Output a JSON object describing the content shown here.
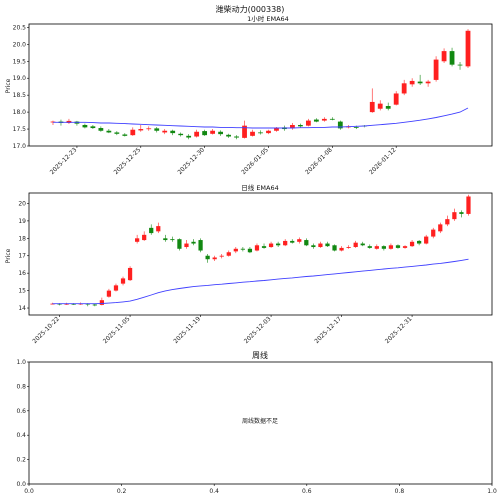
{
  "suptitle": "潍柴动力(000338)",
  "colors": {
    "up": "#ff2020",
    "down": "#118811",
    "ema": "#4040ff"
  },
  "chart_data": [
    {
      "type": "candlestick",
      "title": "1小时 EMA64",
      "ylabel": "Price",
      "ylim": [
        17.0,
        20.6
      ],
      "yticks": [
        "17.0",
        "17.5",
        "18.0",
        "18.5",
        "19.0",
        "19.5",
        "20.0",
        "20.5"
      ],
      "xticks": [
        "2025-12-23",
        "2025-12-25",
        "2025-12-30",
        "2026-01-05",
        "2026-01-08",
        "2026-01-12"
      ],
      "xtick_index": [
        3,
        11,
        19,
        27,
        35,
        43
      ],
      "n": 53,
      "candles": [
        [
          17.7,
          17.72,
          17.75,
          17.62
        ],
        [
          17.72,
          17.68,
          17.78,
          17.6
        ],
        [
          17.68,
          17.74,
          17.8,
          17.65
        ],
        [
          17.72,
          17.66,
          17.74,
          17.6
        ],
        [
          17.62,
          17.55,
          17.66,
          17.52
        ],
        [
          17.58,
          17.53,
          17.62,
          17.5
        ],
        [
          17.53,
          17.45,
          17.58,
          17.42
        ],
        [
          17.45,
          17.4,
          17.5,
          17.38
        ],
        [
          17.4,
          17.36,
          17.44,
          17.32
        ],
        [
          17.34,
          17.3,
          17.38,
          17.28
        ],
        [
          17.32,
          17.48,
          17.55,
          17.3
        ],
        [
          17.46,
          17.5,
          17.62,
          17.42
        ],
        [
          17.5,
          17.52,
          17.58,
          17.45
        ],
        [
          17.52,
          17.45,
          17.56,
          17.4
        ],
        [
          17.4,
          17.45,
          17.5,
          17.35
        ],
        [
          17.45,
          17.38,
          17.48,
          17.32
        ],
        [
          17.36,
          17.32,
          17.4,
          17.28
        ],
        [
          17.3,
          17.25,
          17.35,
          17.2
        ],
        [
          17.28,
          17.42,
          17.48,
          17.25
        ],
        [
          17.44,
          17.32,
          17.48,
          17.3
        ],
        [
          17.36,
          17.45,
          17.5,
          17.34
        ],
        [
          17.42,
          17.35,
          17.46,
          17.3
        ],
        [
          17.33,
          17.28,
          17.36,
          17.24
        ],
        [
          17.28,
          17.25,
          17.32,
          17.2
        ],
        [
          17.24,
          17.6,
          17.75,
          17.22
        ],
        [
          17.3,
          17.42,
          17.48,
          17.28
        ],
        [
          17.4,
          17.38,
          17.46,
          17.34
        ],
        [
          17.38,
          17.45,
          17.48,
          17.35
        ],
        [
          17.45,
          17.52,
          17.56,
          17.42
        ],
        [
          17.55,
          17.5,
          17.6,
          17.45
        ],
        [
          17.52,
          17.62,
          17.68,
          17.48
        ],
        [
          17.62,
          17.58,
          17.66,
          17.54
        ],
        [
          17.6,
          17.75,
          17.8,
          17.58
        ],
        [
          17.78,
          17.72,
          17.82,
          17.7
        ],
        [
          17.75,
          17.8,
          17.85,
          17.72
        ],
        [
          17.8,
          17.78,
          17.85,
          17.76
        ],
        [
          17.72,
          17.52,
          17.75,
          17.48
        ],
        [
          17.55,
          17.58,
          17.62,
          17.52
        ],
        [
          17.56,
          17.55,
          17.6,
          17.5
        ],
        [
          17.6,
          17.58,
          17.62,
          17.55
        ],
        [
          18.0,
          18.3,
          18.7,
          17.98
        ],
        [
          18.1,
          18.25,
          18.35,
          18.05
        ],
        [
          18.18,
          18.1,
          18.28,
          18.05
        ],
        [
          18.22,
          18.55,
          18.62,
          18.2
        ],
        [
          18.55,
          18.85,
          18.95,
          18.5
        ],
        [
          18.82,
          18.92,
          19.0,
          18.75
        ],
        [
          18.9,
          18.85,
          19.1,
          18.8
        ],
        [
          18.85,
          18.9,
          18.95,
          18.75
        ],
        [
          18.95,
          19.55,
          19.65,
          18.9
        ],
        [
          19.5,
          19.8,
          19.88,
          19.45
        ],
        [
          19.8,
          19.4,
          19.9,
          19.35
        ],
        [
          19.4,
          19.38,
          19.48,
          19.25
        ],
        [
          19.35,
          20.4,
          20.45,
          19.3
        ]
      ],
      "ema": [
        17.7,
        17.7,
        17.7,
        17.7,
        17.7,
        17.69,
        17.68,
        17.68,
        17.67,
        17.66,
        17.65,
        17.64,
        17.63,
        17.62,
        17.61,
        17.6,
        17.59,
        17.58,
        17.57,
        17.56,
        17.56,
        17.55,
        17.55,
        17.54,
        17.54,
        17.53,
        17.53,
        17.53,
        17.53,
        17.53,
        17.53,
        17.54,
        17.54,
        17.55,
        17.55,
        17.56,
        17.56,
        17.57,
        17.58,
        17.59,
        17.61,
        17.63,
        17.65,
        17.67,
        17.7,
        17.73,
        17.76,
        17.8,
        17.84,
        17.89,
        17.94,
        18.0,
        18.12
      ]
    },
    {
      "type": "candlestick",
      "title": "日线 EMA64",
      "ylabel": "Price",
      "ylim": [
        13.6,
        20.6
      ],
      "yticks": [
        "14",
        "15",
        "16",
        "17",
        "18",
        "19",
        "20"
      ],
      "xticks": [
        "2025-10-22",
        "2025-11-05",
        "2025-11-19",
        "2025-12-03",
        "2025-12-17",
        "2025-12-31"
      ],
      "xtick_index": [
        1,
        11,
        21,
        31,
        41,
        51
      ],
      "n": 60,
      "candles": [
        [
          14.25,
          14.25,
          14.3,
          14.2
        ],
        [
          14.25,
          14.2,
          14.28,
          14.15
        ],
        [
          14.22,
          14.24,
          14.3,
          14.18
        ],
        [
          14.24,
          14.22,
          14.28,
          14.18
        ],
        [
          14.22,
          14.25,
          14.32,
          14.18
        ],
        [
          14.25,
          14.2,
          14.28,
          14.1
        ],
        [
          14.2,
          14.15,
          14.25,
          14.1
        ],
        [
          14.18,
          14.45,
          14.6,
          14.15
        ],
        [
          14.65,
          15.0,
          15.1,
          14.6
        ],
        [
          15.0,
          15.3,
          15.4,
          14.95
        ],
        [
          15.4,
          15.7,
          15.8,
          15.3
        ],
        [
          15.6,
          16.3,
          16.4,
          15.55
        ],
        [
          17.8,
          18.0,
          18.2,
          17.7
        ],
        [
          17.9,
          18.2,
          18.4,
          17.85
        ],
        [
          18.6,
          18.3,
          18.8,
          18.2
        ],
        [
          18.4,
          18.7,
          18.9,
          18.3
        ],
        [
          18.0,
          17.9,
          18.2,
          17.8
        ],
        [
          17.95,
          17.9,
          18.1,
          17.8
        ],
        [
          17.95,
          17.4,
          18.0,
          17.3
        ],
        [
          17.5,
          17.7,
          17.9,
          17.4
        ],
        [
          17.8,
          17.7,
          17.95,
          17.6
        ],
        [
          17.9,
          17.3,
          18.0,
          17.2
        ],
        [
          17.0,
          16.8,
          17.1,
          16.6
        ],
        [
          16.8,
          16.9,
          17.0,
          16.7
        ],
        [
          16.95,
          17.0,
          17.1,
          16.85
        ],
        [
          17.0,
          17.2,
          17.3,
          16.95
        ],
        [
          17.25,
          17.4,
          17.5,
          17.15
        ],
        [
          17.4,
          17.35,
          17.5,
          17.25
        ],
        [
          17.4,
          17.2,
          17.5,
          17.15
        ],
        [
          17.3,
          17.6,
          17.7,
          17.25
        ],
        [
          17.55,
          17.45,
          17.7,
          17.4
        ],
        [
          17.5,
          17.7,
          17.8,
          17.45
        ],
        [
          17.7,
          17.6,
          17.8,
          17.5
        ],
        [
          17.6,
          17.85,
          17.95,
          17.55
        ],
        [
          17.85,
          17.75,
          17.95,
          17.7
        ],
        [
          17.8,
          17.95,
          18.05,
          17.7
        ],
        [
          17.9,
          17.6,
          18.0,
          17.55
        ],
        [
          17.6,
          17.5,
          17.7,
          17.4
        ],
        [
          17.5,
          17.7,
          17.8,
          17.45
        ],
        [
          17.7,
          17.55,
          17.8,
          17.5
        ],
        [
          17.6,
          17.3,
          17.65,
          17.25
        ],
        [
          17.3,
          17.45,
          17.55,
          17.25
        ],
        [
          17.45,
          17.5,
          17.6,
          17.4
        ],
        [
          17.5,
          17.75,
          17.85,
          17.45
        ],
        [
          17.7,
          17.6,
          17.8,
          17.55
        ],
        [
          17.55,
          17.45,
          17.65,
          17.4
        ],
        [
          17.4,
          17.55,
          17.65,
          17.35
        ],
        [
          17.55,
          17.4,
          17.6,
          17.3
        ],
        [
          17.4,
          17.6,
          17.7,
          17.35
        ],
        [
          17.6,
          17.45,
          17.65,
          17.4
        ],
        [
          17.45,
          17.55,
          17.6,
          17.4
        ],
        [
          17.55,
          17.8,
          17.9,
          17.5
        ],
        [
          17.85,
          17.7,
          17.9,
          17.6
        ],
        [
          17.7,
          18.1,
          18.2,
          17.65
        ],
        [
          18.1,
          18.5,
          18.6,
          18.0
        ],
        [
          18.4,
          18.8,
          18.9,
          18.3
        ],
        [
          18.8,
          19.1,
          19.3,
          18.7
        ],
        [
          19.1,
          19.5,
          19.7,
          19.0
        ],
        [
          19.5,
          19.4,
          19.6,
          19.2
        ],
        [
          19.4,
          20.4,
          20.5,
          19.3
        ]
      ],
      "ema": [
        14.25,
        14.25,
        14.25,
        14.25,
        14.25,
        14.25,
        14.25,
        14.26,
        14.28,
        14.31,
        14.35,
        14.4,
        14.5,
        14.62,
        14.75,
        14.88,
        14.98,
        15.06,
        15.12,
        15.18,
        15.23,
        15.27,
        15.3,
        15.34,
        15.37,
        15.41,
        15.44,
        15.48,
        15.51,
        15.55,
        15.58,
        15.62,
        15.66,
        15.7,
        15.73,
        15.77,
        15.81,
        15.84,
        15.88,
        15.92,
        15.96,
        16.0,
        16.04,
        16.08,
        16.12,
        16.16,
        16.2,
        16.24,
        16.28,
        16.31,
        16.35,
        16.39,
        16.43,
        16.47,
        16.52,
        16.56,
        16.61,
        16.67,
        16.73,
        16.8
      ]
    },
    {
      "type": "empty",
      "title": "周线",
      "message": "周线数据不足",
      "xlim": [
        0.0,
        1.0
      ],
      "ylim": [
        0.0,
        1.0
      ],
      "xticks": [
        "0.0",
        "0.2",
        "0.4",
        "0.6",
        "0.8",
        "1.0"
      ],
      "yticks": [
        "0.0",
        "0.2",
        "0.4",
        "0.6",
        "0.8",
        "1.0"
      ]
    }
  ]
}
